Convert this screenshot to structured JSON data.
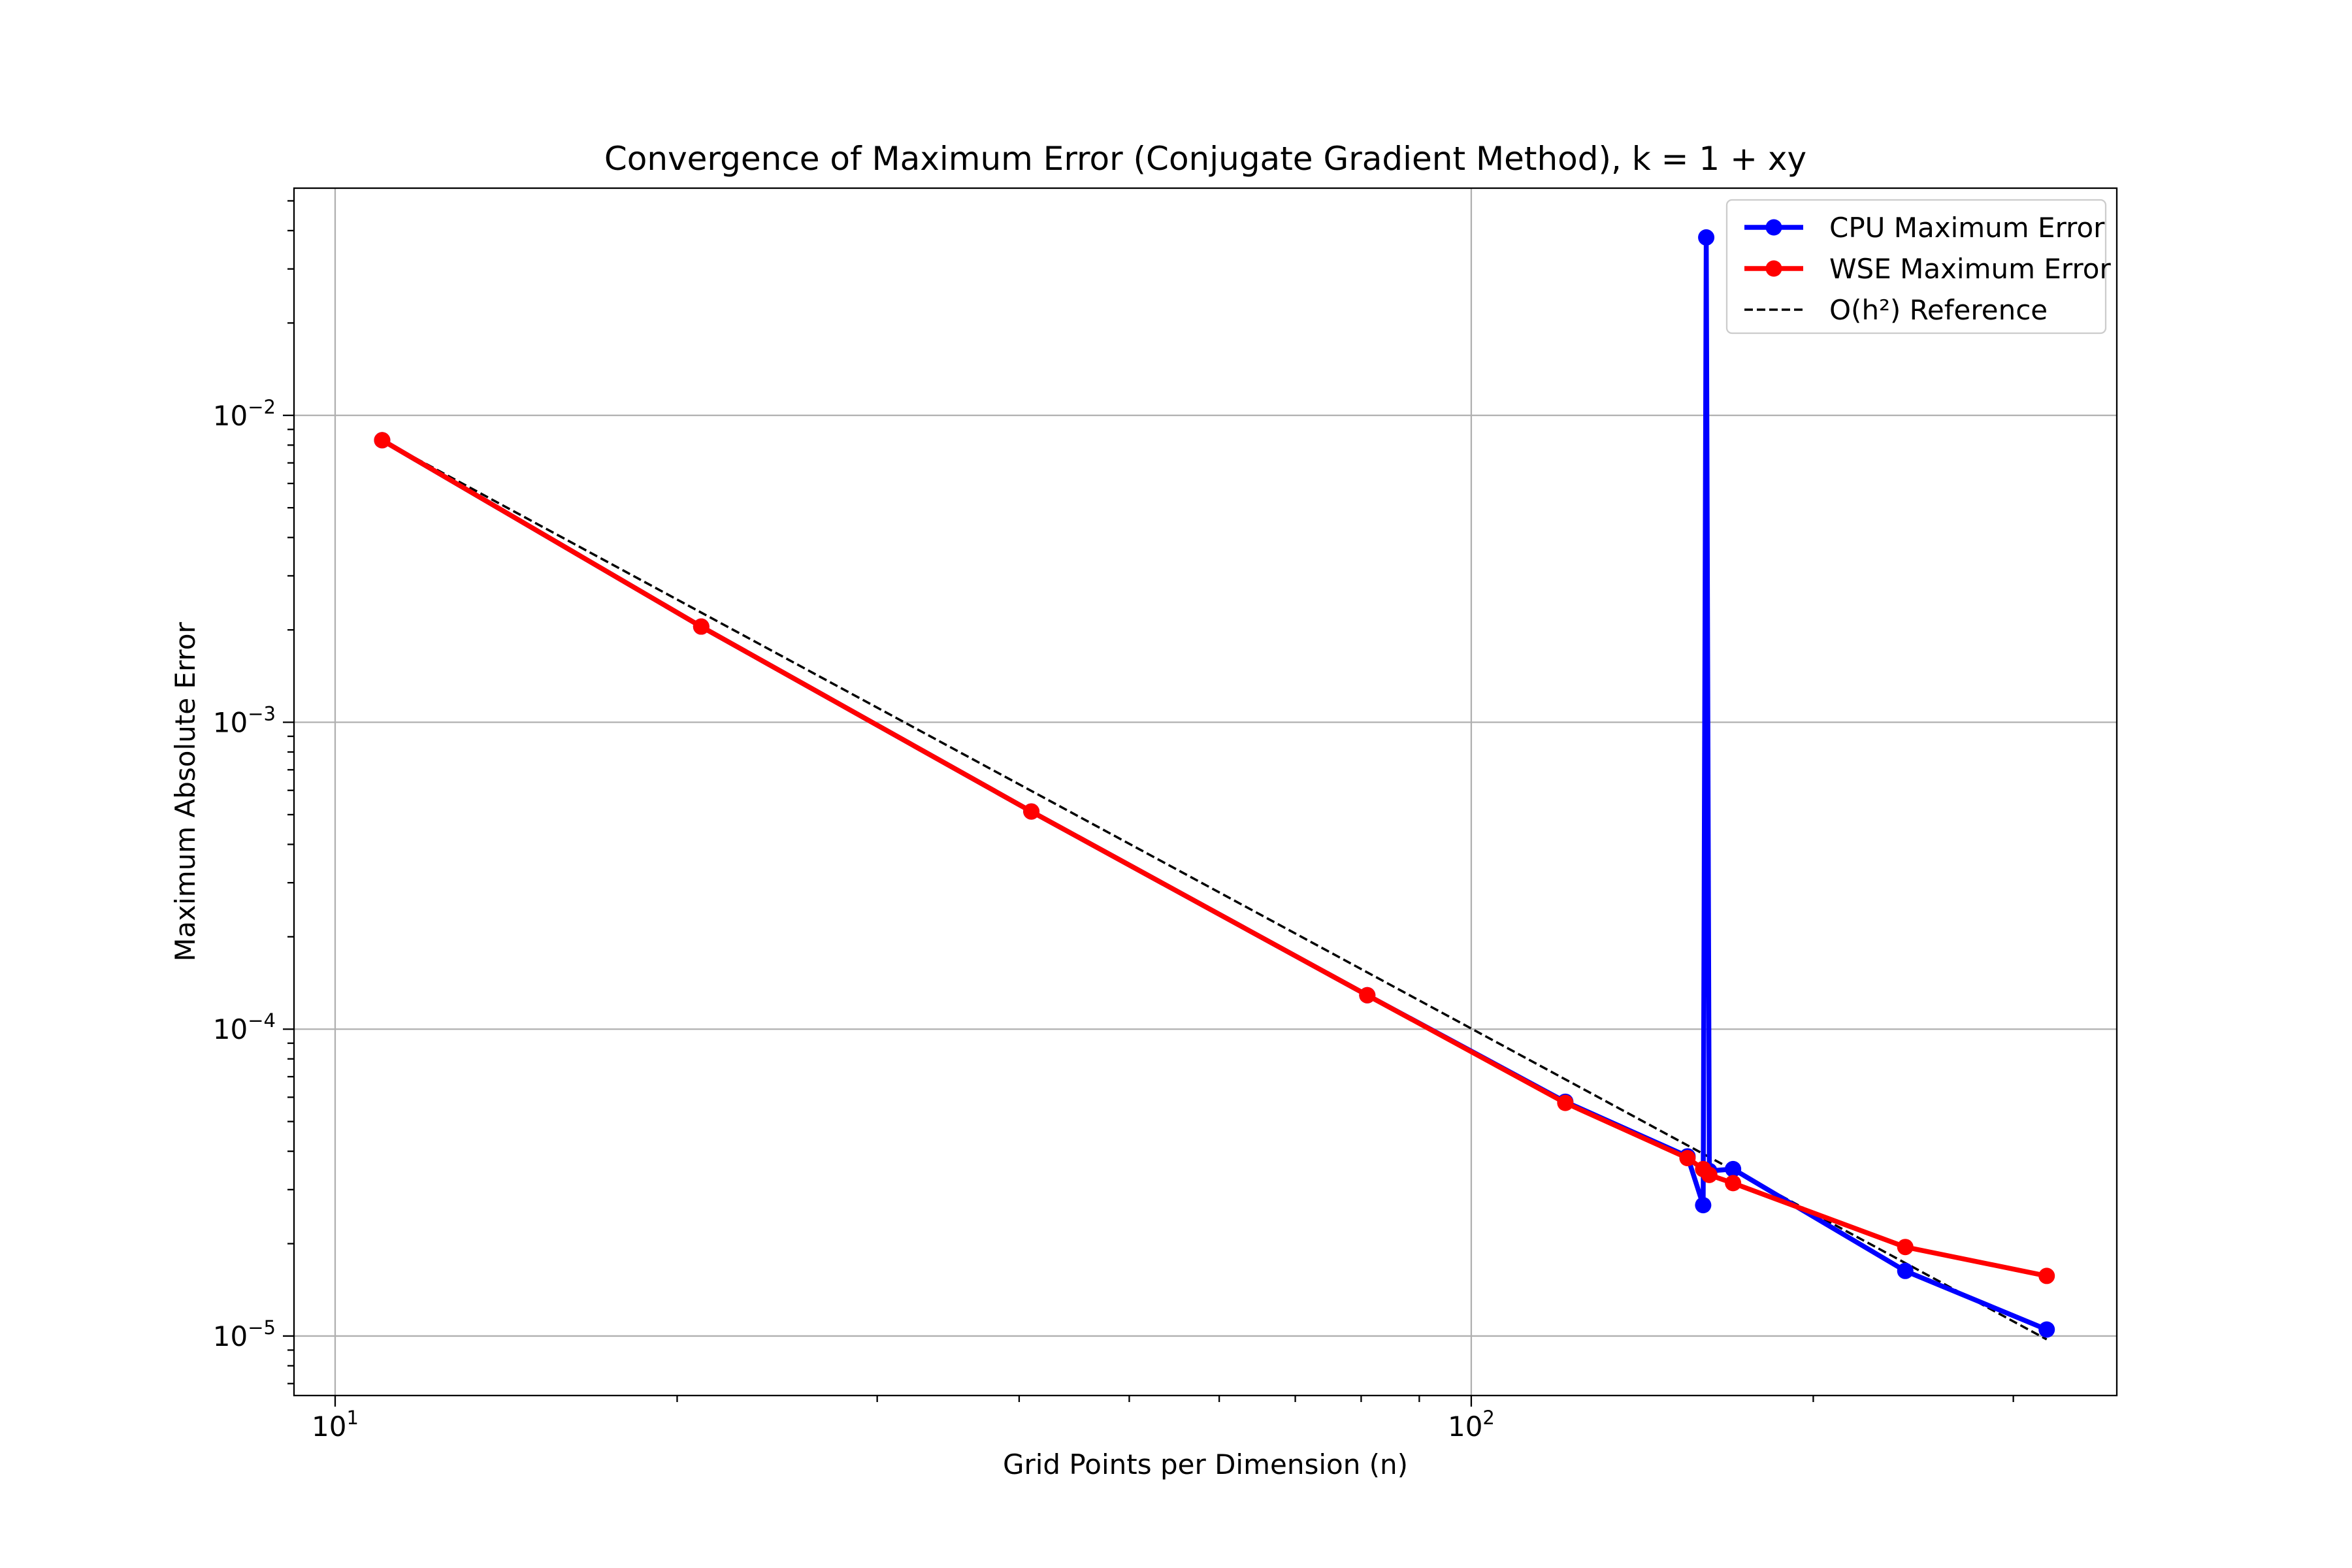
{
  "chart_data": {
    "type": "line",
    "title": "Convergence of Maximum Error (Conjugate Gradient Method), k = 1 + xy",
    "xlabel": "Grid Points per Dimension (n)",
    "ylabel": "Maximum Absolute Error",
    "x_scale": "log",
    "y_scale": "log",
    "xlim": [
      9.2,
      370
    ],
    "ylim": [
      6.4e-06,
      0.055
    ],
    "x_ticks": [
      {
        "value": 10,
        "base": "10",
        "exp": "1"
      },
      {
        "value": 100,
        "base": "10",
        "exp": "2"
      }
    ],
    "y_ticks": [
      {
        "value": 1e-05,
        "base": "10",
        "exp": "−5"
      },
      {
        "value": 0.0001,
        "base": "10",
        "exp": "−4"
      },
      {
        "value": 0.001,
        "base": "10",
        "exp": "−3"
      },
      {
        "value": 0.01,
        "base": "10",
        "exp": "−2"
      }
    ],
    "grid": true,
    "legend_position": "top-right",
    "series": [
      {
        "name": "CPU Maximum Error",
        "color": "#0000ff",
        "style": "solid",
        "marker": "circle",
        "x": [
          11,
          21,
          41,
          81,
          121,
          155,
          160,
          161,
          162,
          170,
          241,
          321
        ],
        "y": [
          0.0083,
          0.00205,
          0.000512,
          0.000129,
          5.8e-05,
          3.85e-05,
          2.67e-05,
          0.038,
          3.45e-05,
          3.5e-05,
          1.63e-05,
          1.05e-05
        ]
      },
      {
        "name": "WSE Maximum Error",
        "color": "#ff0000",
        "style": "solid",
        "marker": "circle",
        "x": [
          11,
          21,
          41,
          81,
          121,
          155,
          160,
          162,
          170,
          241,
          321
        ],
        "y": [
          0.0083,
          0.00205,
          0.000512,
          0.000129,
          5.75e-05,
          3.8e-05,
          3.5e-05,
          3.35e-05,
          3.15e-05,
          1.95e-05,
          1.57e-05
        ]
      },
      {
        "name": "O(h²) Reference",
        "color": "#000000",
        "style": "dashed",
        "marker": "none",
        "x": [
          11,
          321
        ],
        "y": [
          0.0083,
          9.75e-06
        ]
      }
    ]
  }
}
